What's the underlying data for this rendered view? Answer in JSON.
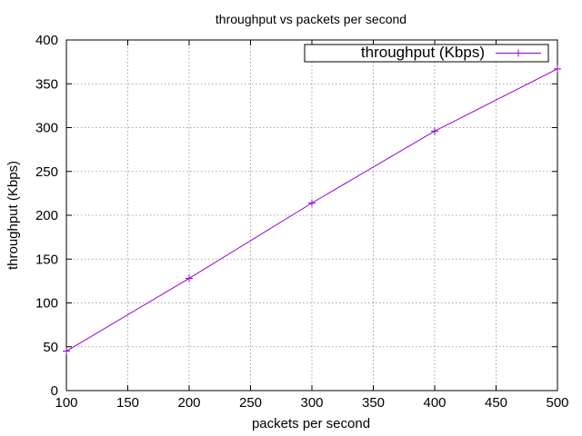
{
  "chart_data": {
    "type": "line",
    "title": "throughput vs packets per second",
    "xlabel": "packets per second",
    "ylabel": "throughput (Kbps)",
    "xlim": [
      100,
      500
    ],
    "ylim": [
      0,
      400
    ],
    "xticks": [
      100,
      150,
      200,
      250,
      300,
      350,
      400,
      450,
      500
    ],
    "yticks": [
      0,
      50,
      100,
      150,
      200,
      250,
      300,
      350,
      400
    ],
    "grid": true,
    "legend_position": "top-right",
    "series": [
      {
        "name": "throughput (Kbps)",
        "color": "#9400d3",
        "marker": "plus",
        "x": [
          100,
          200,
          300,
          400,
          500
        ],
        "y": [
          45,
          128,
          214,
          296,
          367
        ]
      }
    ]
  }
}
